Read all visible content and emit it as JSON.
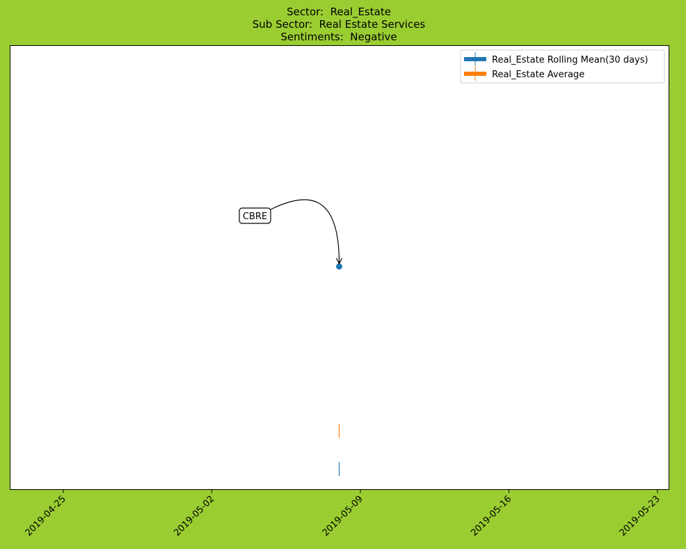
{
  "title_lines": {
    "sector": "Sector:  Real_Estate",
    "sub_sector": "Sub Sector:  Real Estate Services",
    "sentiment": "Sentiments:  Negative"
  },
  "colors": {
    "background": "#9acd32",
    "rolling_mean": "#1f77b4",
    "average": "#ff7f0e"
  },
  "chart_data": {
    "type": "scatter",
    "x_type": "date",
    "xlim": [
      "2019-04-21",
      "2019-05-23"
    ],
    "x_ticks": [
      "2019-04-25",
      "2019-05-02",
      "2019-05-09",
      "2019-05-16",
      "2019-05-23"
    ],
    "y_ticks_visible": false,
    "legend_position": "top-right",
    "series": [
      {
        "name": "Real_Estate Rolling Mean(30 days)",
        "color": "#1f77b4",
        "marker": "vline",
        "points": [
          {
            "x": "2019-05-08"
          }
        ]
      },
      {
        "name": "Real_Estate Average",
        "color": "#ff7f0e",
        "marker": "vline",
        "points": [
          {
            "x": "2019-05-08"
          }
        ]
      }
    ],
    "highlight_point": {
      "x": "2019-05-08",
      "color": "#1f77b4"
    },
    "annotations": [
      {
        "text": "CBRE",
        "target_x": "2019-05-08"
      }
    ]
  }
}
